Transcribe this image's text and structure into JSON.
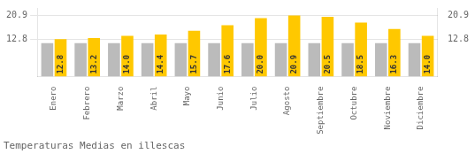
{
  "chart_data": {
    "type": "bar",
    "title": "Temperaturas Medias en illescas",
    "categories": [
      "Enero",
      "Febrero",
      "Marzo",
      "Abril",
      "Mayo",
      "Junio",
      "Julio",
      "Agosto",
      "Septiembre",
      "Octubre",
      "Noviembre",
      "Diciembre"
    ],
    "series": [
      {
        "color": "#BBBBBB",
        "values": [
          11.5,
          11.5,
          11.5,
          11.5,
          11.5,
          11.5,
          11.5,
          11.5,
          11.5,
          11.5,
          11.5,
          11.5
        ]
      },
      {
        "color": "#FFC800",
        "data_labels": true,
        "values": [
          12.8,
          13.2,
          14.0,
          14.4,
          15.7,
          17.6,
          20.0,
          20.9,
          20.5,
          18.5,
          16.3,
          14.0
        ],
        "value_labels": [
          "12.8",
          "13.2",
          "14.0",
          "14.4",
          "15.7",
          "17.6",
          "20.0",
          "20.9",
          "20.5",
          "18.5",
          "16.3",
          "14.0"
        ]
      }
    ],
    "ylim": [
      0,
      23.5
    ],
    "yticks": [
      12.8,
      20.9
    ],
    "y2lim": [
      0,
      23.5
    ],
    "y2ticks": [
      12.8,
      20.9
    ],
    "grid": true,
    "legend": false
  }
}
